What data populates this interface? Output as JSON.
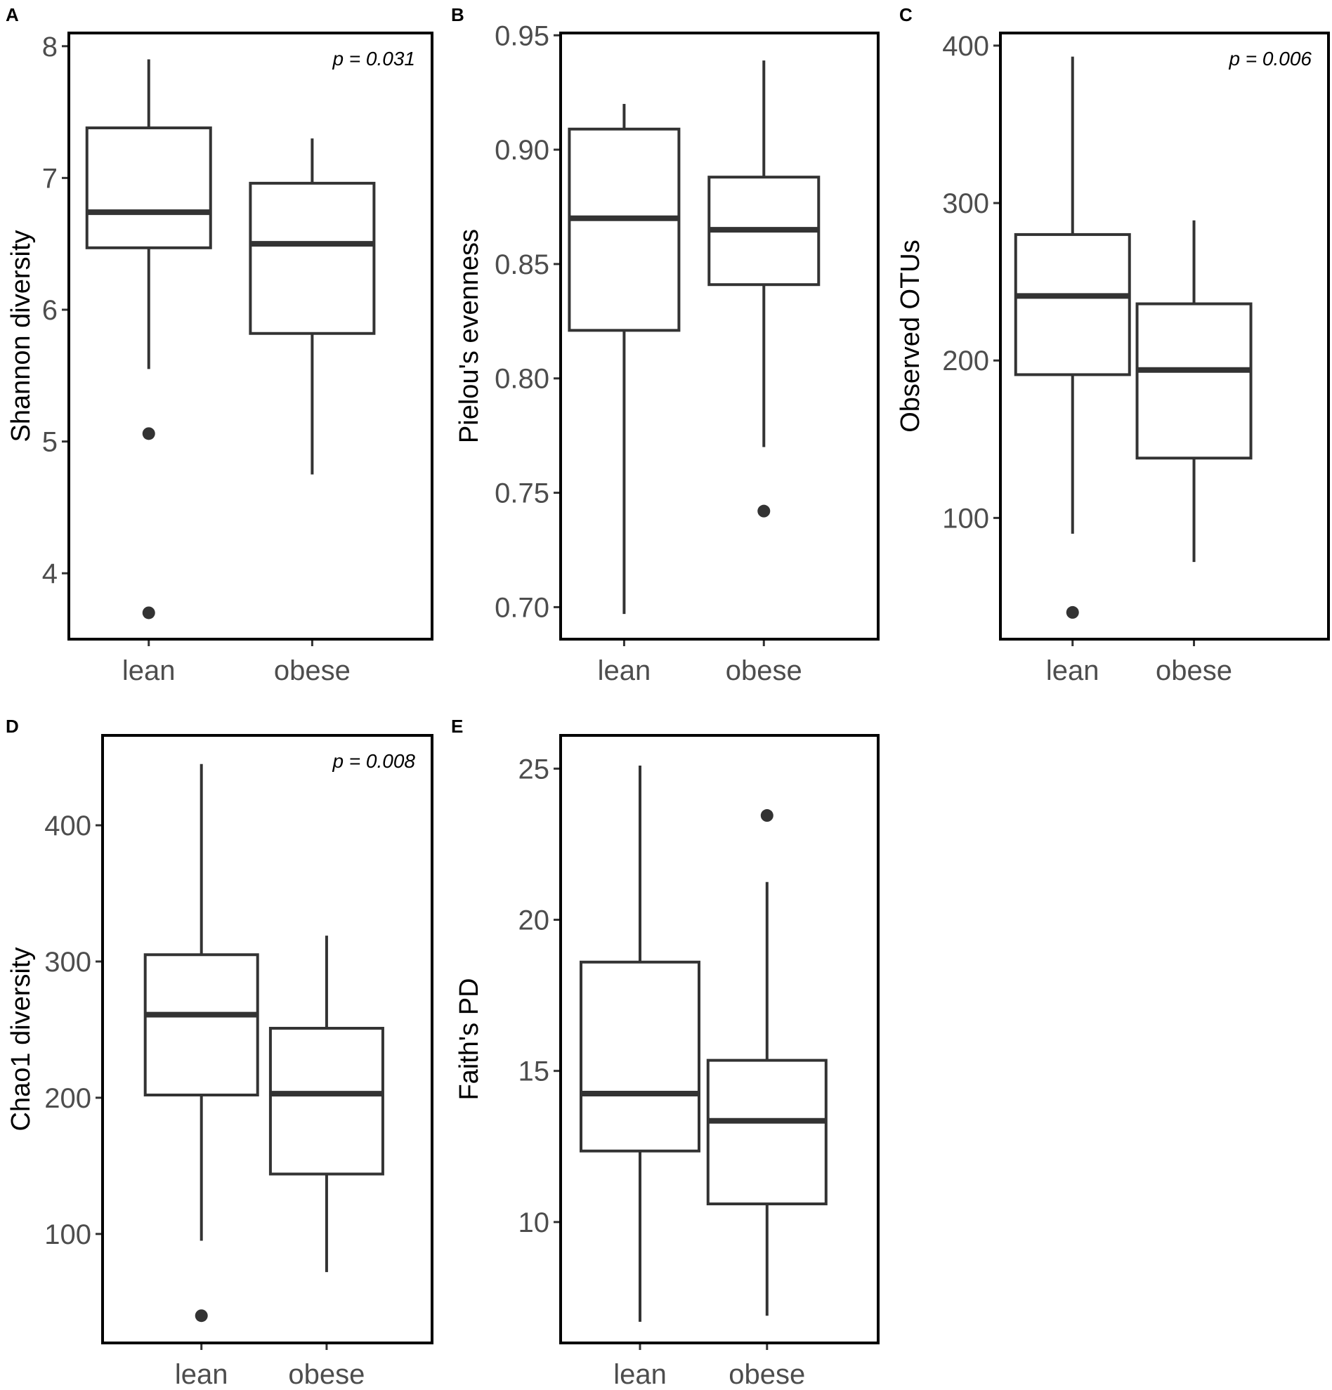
{
  "chart_data": [
    {
      "panel": "A",
      "type": "box",
      "categories": [
        "lean",
        "obese"
      ],
      "ylabel": "Shannon diversity",
      "ylim": [
        3.5,
        8.1
      ],
      "yticks": [
        4,
        5,
        6,
        7,
        8
      ],
      "ytick_labels": [
        "4",
        "5",
        "6",
        "7",
        "8"
      ],
      "annotation": "p = 0.031",
      "boxes": [
        {
          "category": "lean",
          "min": 5.55,
          "q1": 6.47,
          "median": 6.74,
          "q3": 7.38,
          "max": 7.9,
          "outliers": [
            5.06,
            3.7
          ]
        },
        {
          "category": "obese",
          "min": 4.75,
          "q1": 5.82,
          "median": 6.5,
          "q3": 6.96,
          "max": 7.3,
          "outliers": []
        }
      ]
    },
    {
      "panel": "B",
      "type": "box",
      "categories": [
        "lean",
        "obese"
      ],
      "ylabel": "Pielou's evenness",
      "ylim": [
        0.686,
        0.951
      ],
      "yticks": [
        0.7,
        0.75,
        0.8,
        0.85,
        0.9,
        0.95
      ],
      "ytick_labels": [
        "0.70",
        "0.75",
        "0.80",
        "0.85",
        "0.90",
        "0.95"
      ],
      "annotation": "",
      "boxes": [
        {
          "category": "lean",
          "min": 0.697,
          "q1": 0.821,
          "median": 0.87,
          "q3": 0.909,
          "max": 0.92,
          "outliers": []
        },
        {
          "category": "obese",
          "min": 0.77,
          "q1": 0.841,
          "median": 0.865,
          "q3": 0.888,
          "max": 0.939,
          "outliers": [
            0.742
          ]
        }
      ]
    },
    {
      "panel": "C",
      "type": "box",
      "categories": [
        "lean",
        "obese"
      ],
      "ylabel": "Observed OTUs",
      "ylim": [
        23,
        408
      ],
      "yticks": [
        100,
        200,
        300,
        400
      ],
      "ytick_labels": [
        "100",
        "200",
        "300",
        "400"
      ],
      "annotation": "p = 0.006",
      "boxes": [
        {
          "category": "lean",
          "min": 90,
          "q1": 191,
          "median": 241,
          "q3": 280,
          "max": 393,
          "outliers": [
            40
          ]
        },
        {
          "category": "obese",
          "min": 72,
          "q1": 138,
          "median": 194,
          "q3": 236,
          "max": 289,
          "outliers": []
        }
      ]
    },
    {
      "panel": "D",
      "type": "box",
      "categories": [
        "lean",
        "obese"
      ],
      "ylabel": "Chao1 diversity",
      "ylim": [
        20,
        466
      ],
      "yticks": [
        100,
        200,
        300,
        400
      ],
      "ytick_labels": [
        "100",
        "200",
        "300",
        "400"
      ],
      "annotation": "p = 0.008",
      "boxes": [
        {
          "category": "lean",
          "min": 95,
          "q1": 202,
          "median": 261,
          "q3": 305,
          "max": 445,
          "outliers": [
            40
          ]
        },
        {
          "category": "obese",
          "min": 72,
          "q1": 144,
          "median": 203,
          "q3": 251,
          "max": 319,
          "outliers": []
        }
      ]
    },
    {
      "panel": "E",
      "type": "box",
      "categories": [
        "lean",
        "obese"
      ],
      "ylabel": "Faith's PD",
      "ylim": [
        6.0,
        26.1
      ],
      "yticks": [
        10,
        15,
        20,
        25
      ],
      "ytick_labels": [
        "10",
        "15",
        "20",
        "25"
      ],
      "annotation": "",
      "boxes": [
        {
          "category": "lean",
          "min": 6.7,
          "q1": 12.35,
          "median": 14.25,
          "q3": 18.6,
          "max": 25.1,
          "outliers": []
        },
        {
          "category": "obese",
          "min": 6.9,
          "q1": 10.6,
          "median": 13.35,
          "q3": 15.35,
          "max": 21.25,
          "outliers": [
            23.45
          ]
        }
      ]
    }
  ]
}
